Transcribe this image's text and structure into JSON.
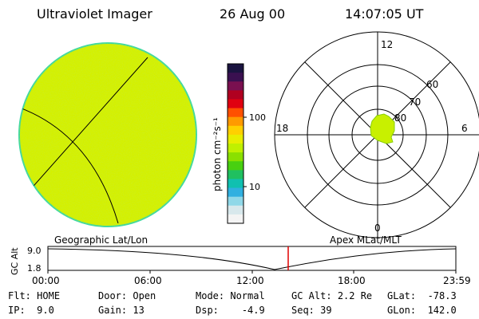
{
  "header": {
    "instrument": "Ultraviolet Imager",
    "date": "26 Aug 00",
    "time": "14:07:05 UT"
  },
  "colorbar": {
    "unit_label": "photon cm⁻²s⁻¹",
    "ticks": [
      "100",
      "10"
    ],
    "colors": [
      "#1a1440",
      "#3a1050",
      "#7a1050",
      "#b00020",
      "#e00010",
      "#ff5000",
      "#ff9a00",
      "#ffd000",
      "#e8ee00",
      "#c0f000",
      "#8ae000",
      "#48d010",
      "#20c060",
      "#10c0b0",
      "#30b0e0",
      "#90d8e8",
      "#d8e8ec",
      "#f4f4f4"
    ]
  },
  "geo_image": {
    "fill_color": "#d4f000",
    "edge_color": "#40d8a0"
  },
  "polar_plot": {
    "lat_labels": [
      "80",
      "70",
      "60"
    ],
    "mlt_labels": {
      "top": "12",
      "left": "18",
      "right": "6",
      "bottom": "0"
    },
    "blob_color": "#c8f000"
  },
  "frame_labels": {
    "left": "Geographic Lat/Lon",
    "right": "Apex MLat/MLT"
  },
  "altitude_plot": {
    "ylabel": "GC Alt",
    "y_ticks": [
      "9.0",
      "1.8"
    ],
    "x_ticks": [
      "00:00",
      "06:00",
      "12:00",
      "18:00",
      "23:59"
    ],
    "marker_color": "#e00000"
  },
  "info": {
    "flt_label": "Flt:",
    "flt_value": "HOME",
    "ip_label": "IP:",
    "ip_value": "9.0",
    "door_label": "Door:",
    "door_value": "Open",
    "gain_label": "Gain:",
    "gain_value": "13",
    "mode_label": "Mode:",
    "mode_value": "Normal",
    "dsp_label": "Dsp:",
    "dsp_value": "-4.9",
    "gcalt_label": "GC Alt:",
    "gcalt_value": "2.2 Re",
    "seq_label": "Seq:",
    "seq_value": "39",
    "glat_label": "GLat:",
    "glat_value": "-78.3",
    "glon_label": "GLon:",
    "glon_value": "142.0"
  }
}
